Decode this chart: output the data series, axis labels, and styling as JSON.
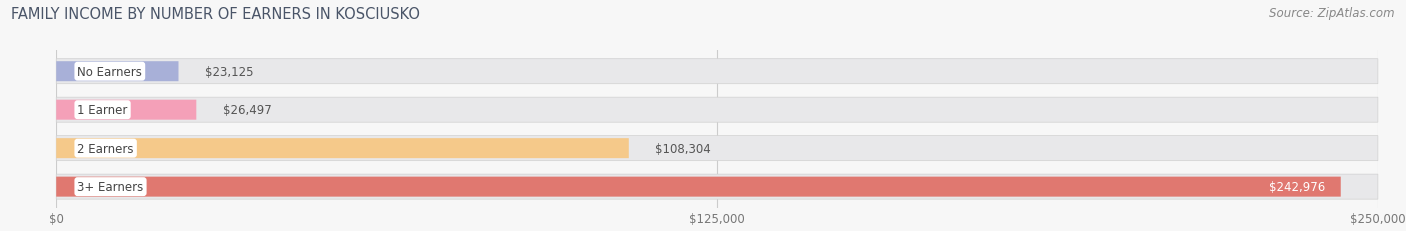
{
  "title": "FAMILY INCOME BY NUMBER OF EARNERS IN KOSCIUSKO",
  "source": "Source: ZipAtlas.com",
  "categories": [
    "No Earners",
    "1 Earner",
    "2 Earners",
    "3+ Earners"
  ],
  "values": [
    23125,
    26497,
    108304,
    242976
  ],
  "labels": [
    "$23,125",
    "$26,497",
    "$108,304",
    "$242,976"
  ],
  "bar_colors": [
    "#a8b0d8",
    "#f4a0b8",
    "#f5c98a",
    "#e07870"
  ],
  "bg_bar_color": "#e8e8ea",
  "xlim": [
    0,
    250000
  ],
  "xticks": [
    0,
    125000,
    250000
  ],
  "xtick_labels": [
    "$0",
    "$125,000",
    "$250,000"
  ],
  "title_color": "#4a5568",
  "source_color": "#888888",
  "title_fontsize": 10.5,
  "source_fontsize": 8.5,
  "bar_label_fontsize": 8.5,
  "category_label_fontsize": 8.5,
  "tick_fontsize": 8.5,
  "background_color": "#f7f7f7",
  "plot_bg_color": "#ffffff"
}
